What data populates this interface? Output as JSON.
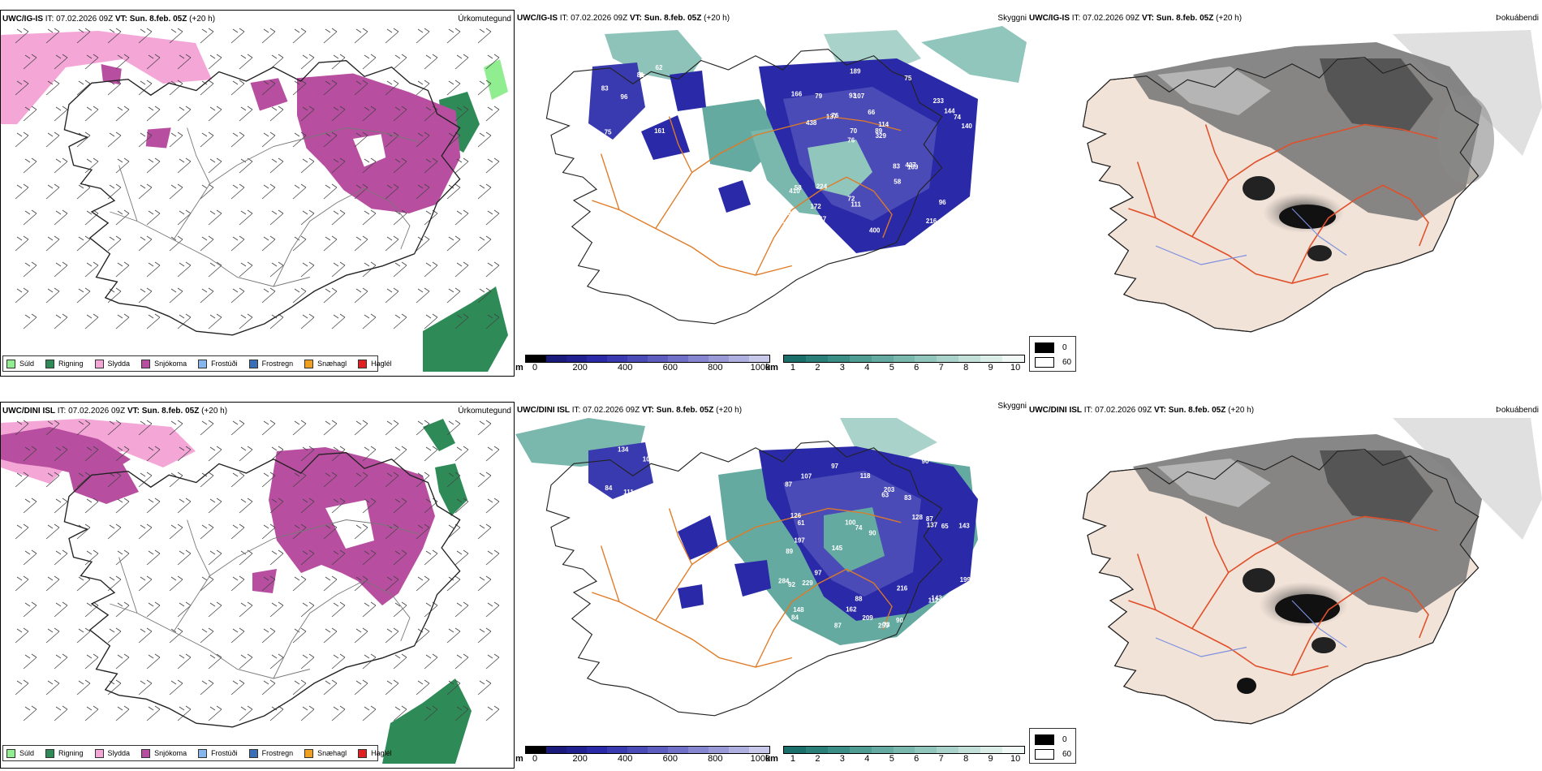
{
  "rows": [
    {
      "model": "UWC/IG-IS",
      "header_rest": " IT: 07.02.2026 09Z ",
      "vt_label": "VT:",
      "vt_value": " Sun. 8.feb. 05Z",
      "lead": " (+20 h)",
      "left_title": "Úrkomutegund",
      "mid_title": "Skyggni",
      "right_title": "Þokuábendi",
      "labels": [
        "161",
        "83",
        "62",
        "96",
        "81",
        "75",
        "93",
        "66",
        "58",
        "76",
        "174",
        "172",
        "107",
        "114",
        "169",
        "166",
        "189",
        "140",
        "83",
        "144",
        "76",
        "72",
        "70",
        "79",
        "75",
        "224",
        "216",
        "96",
        "427",
        "400",
        "137",
        "438",
        "58",
        "667",
        "74",
        "89",
        "160",
        "111",
        "329",
        "410",
        "233",
        "272"
      ]
    },
    {
      "model": "UWC/DINI ISL",
      "header_rest": " IT: 07.02.2026 09Z ",
      "vt_label": "VT:",
      "vt_value": " Sun. 8.feb. 05Z",
      "lead": " (+20 h)",
      "left_title": "Úrkomutegund",
      "mid_title": "Skyggni",
      "right_title": "Þokuábendi",
      "labels": [
        "134",
        "105",
        "148",
        "111",
        "97",
        "84",
        "87",
        "83",
        "89",
        "63",
        "90",
        "84",
        "97",
        "145",
        "259",
        "73",
        "88",
        "90",
        "128",
        "97",
        "61",
        "197",
        "143",
        "65",
        "284",
        "126",
        "74",
        "137",
        "143",
        "92",
        "112",
        "203",
        "229",
        "100",
        "216",
        "199",
        "87",
        "162",
        "194",
        "118",
        "148",
        "87",
        "90",
        "107",
        "209"
      ]
    }
  ],
  "ptype_legend": [
    {
      "label": "Súld",
      "color": "#90ee90"
    },
    {
      "label": "Rigning",
      "color": "#2e8b57"
    },
    {
      "label": "Slydda",
      "color": "#f4a6d7"
    },
    {
      "label": "Snjókoma",
      "color": "#b84ea0"
    },
    {
      "label": "Frostúði",
      "color": "#87b5ee"
    },
    {
      "label": "Frostregn",
      "color": "#3a6fb8"
    },
    {
      "label": "Snæhagl",
      "color": "#f0a020"
    },
    {
      "label": "Haglél",
      "color": "#e02020"
    }
  ],
  "cloud_base_bar": {
    "unit": "m",
    "ticks": [
      "0",
      "200",
      "400",
      "600",
      "800",
      "1000"
    ],
    "colors": [
      "#000000",
      "#1a1a7a",
      "#202090",
      "#2a2aa8",
      "#3a3ab0",
      "#4b4bb8",
      "#5d5dc0",
      "#7070c8",
      "#8585d0",
      "#9999d8",
      "#b0b0e0",
      "#c8c8ea"
    ]
  },
  "visibility_bar": {
    "unit": "km",
    "ticks": [
      "1",
      "2",
      "3",
      "4",
      "5",
      "6",
      "7",
      "8",
      "9",
      "10"
    ],
    "colors": [
      "#1b6f6a",
      "#2a7f78",
      "#3b8e86",
      "#4f9c93",
      "#64aaa0",
      "#7ab8ae",
      "#91c6bc",
      "#a9d3ca",
      "#c2e0d8",
      "#dbede7",
      "#f2f8f6"
    ]
  },
  "fog_legend": [
    {
      "label": "0",
      "color": "#000000"
    },
    {
      "label": "60",
      "color": "#ffffff"
    }
  ]
}
